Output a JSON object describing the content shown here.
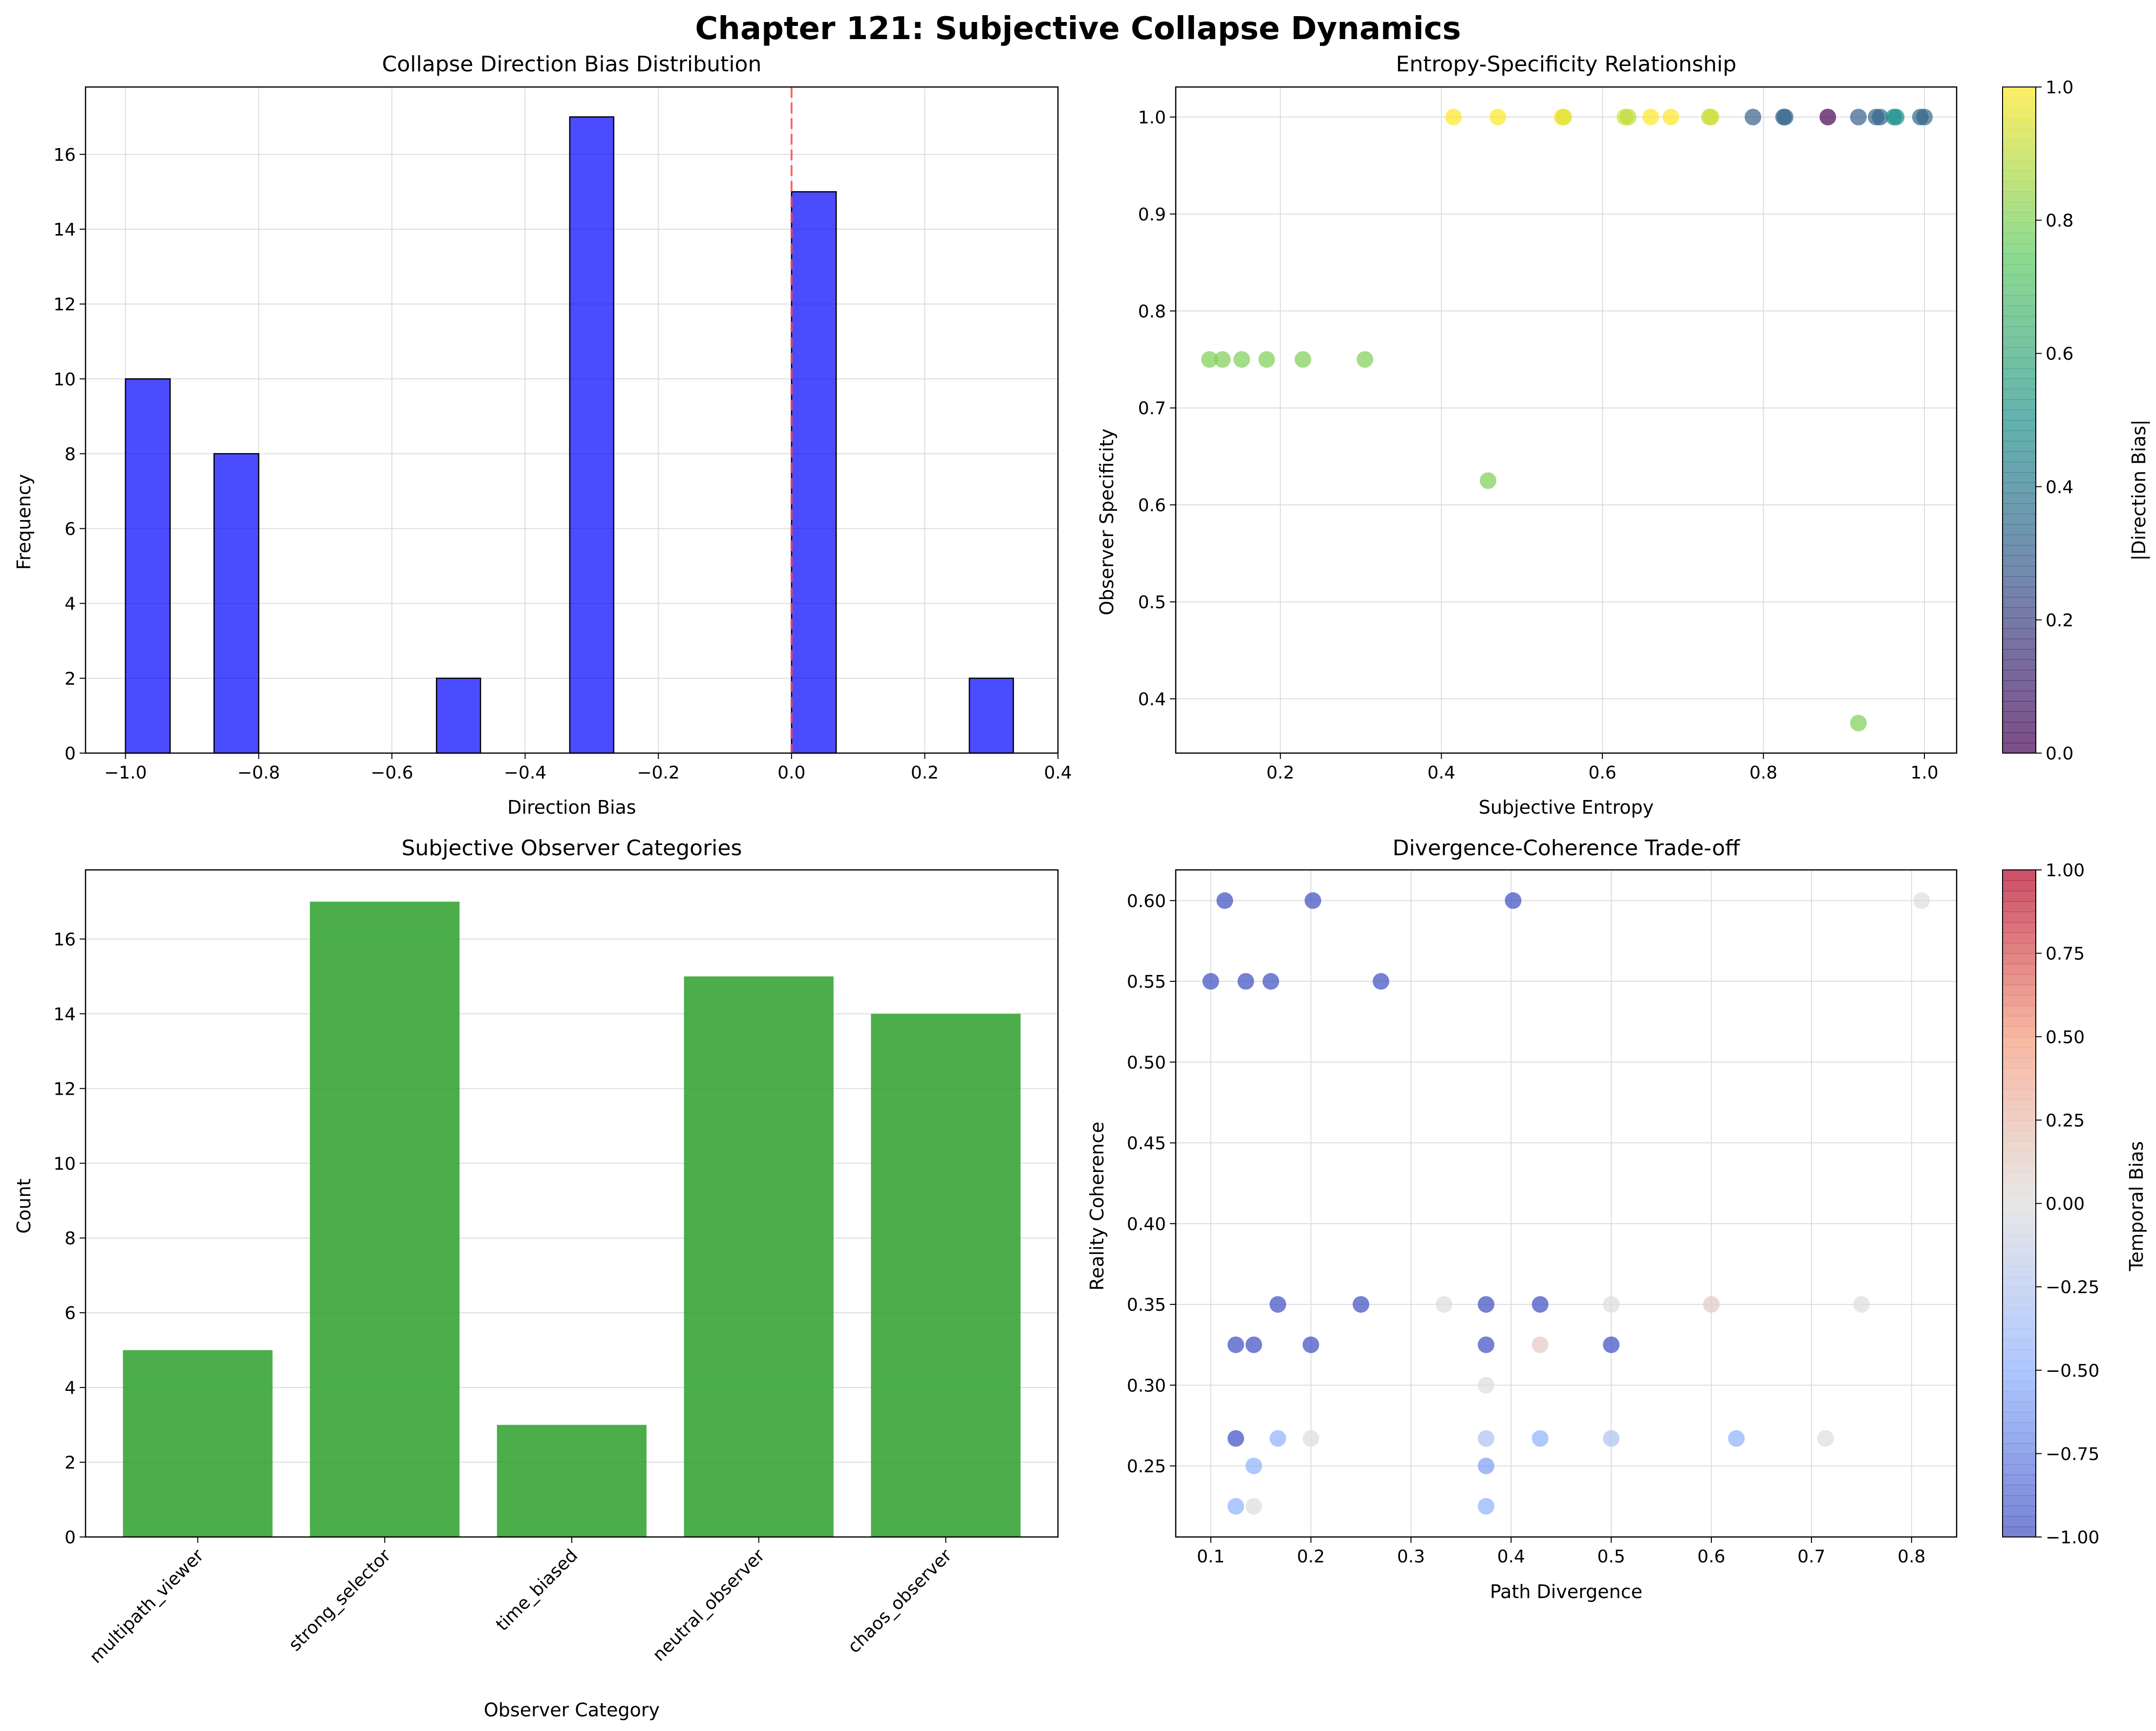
{
  "title": "Chapter 121: Subjective Collapse Dynamics",
  "colors": {
    "hist": "#0000ff",
    "bar": "#2ca02c",
    "zero_line": "#ff4d4d",
    "grid": "#dddddd"
  },
  "chart_data": [
    {
      "id": "hist",
      "type": "bar",
      "title": "Collapse Direction Bias Distribution",
      "xlabel": "Direction Bias",
      "ylabel": "Frequency",
      "xlim": [
        -1.06,
        0.4
      ],
      "ylim": [
        0,
        17.8
      ],
      "xticks": [
        -1.0,
        -0.8,
        -0.6,
        -0.4,
        -0.2,
        0.0,
        0.2,
        0.4
      ],
      "xtick_labels": [
        "−1.0",
        "−0.8",
        "−0.6",
        "−0.4",
        "−0.2",
        "0.0",
        "0.2",
        "0.4"
      ],
      "yticks": [
        0,
        2,
        4,
        6,
        8,
        10,
        12,
        14,
        16
      ],
      "bins": [
        {
          "x0": -1.0,
          "x1": -0.933,
          "value": 10
        },
        {
          "x0": -0.867,
          "x1": -0.8,
          "value": 8
        },
        {
          "x0": -0.533,
          "x1": -0.467,
          "value": 2
        },
        {
          "x0": -0.333,
          "x1": -0.267,
          "value": 17
        },
        {
          "x0": 0.0,
          "x1": 0.067,
          "value": 15
        },
        {
          "x0": 0.267,
          "x1": 0.333,
          "value": 2
        }
      ],
      "vline": 0.0,
      "grid": true
    },
    {
      "id": "scatter1",
      "type": "scatter",
      "title": "Entropy-Specificity Relationship",
      "xlabel": "Subjective Entropy",
      "ylabel": "Observer Specificity",
      "xlim": [
        0.07,
        1.04
      ],
      "ylim": [
        0.344,
        1.031
      ],
      "xticks": [
        0.2,
        0.4,
        0.6,
        0.8,
        1.0
      ],
      "xtick_labels": [
        "0.2",
        "0.4",
        "0.6",
        "0.8",
        "1.0"
      ],
      "yticks": [
        0.4,
        0.5,
        0.6,
        0.7,
        0.8,
        0.9,
        1.0
      ],
      "ytick_labels": [
        "0.4",
        "0.5",
        "0.6",
        "0.7",
        "0.8",
        "0.9",
        "1.0"
      ],
      "colorbar": {
        "label": "|Direction Bias|",
        "colormap": "viridis",
        "range": [
          0,
          1
        ],
        "ticks": [
          0.0,
          0.2,
          0.4,
          0.6,
          0.8,
          1.0
        ],
        "tick_labels": [
          "0.0",
          "0.2",
          "0.4",
          "0.6",
          "0.8",
          "1.0"
        ]
      },
      "points": [
        {
          "x": 0.415,
          "y": 1.0,
          "c": 1.0
        },
        {
          "x": 0.47,
          "y": 1.0,
          "c": 1.0
        },
        {
          "x": 0.55,
          "y": 1.0,
          "c": 1.0
        },
        {
          "x": 0.552,
          "y": 1.0,
          "c": 0.95
        },
        {
          "x": 0.628,
          "y": 1.0,
          "c": 0.93
        },
        {
          "x": 0.632,
          "y": 1.0,
          "c": 0.9
        },
        {
          "x": 0.66,
          "y": 1.0,
          "c": 1.0
        },
        {
          "x": 0.685,
          "y": 1.0,
          "c": 1.0
        },
        {
          "x": 0.733,
          "y": 1.0,
          "c": 0.9
        },
        {
          "x": 0.735,
          "y": 1.0,
          "c": 0.93
        },
        {
          "x": 0.787,
          "y": 1.0,
          "c": 0.3
        },
        {
          "x": 0.825,
          "y": 1.0,
          "c": 0.33
        },
        {
          "x": 0.827,
          "y": 1.0,
          "c": 0.33
        },
        {
          "x": 0.88,
          "y": 1.0,
          "c": 0.0
        },
        {
          "x": 0.918,
          "y": 1.0,
          "c": 0.3
        },
        {
          "x": 0.94,
          "y": 1.0,
          "c": 0.33
        },
        {
          "x": 0.945,
          "y": 1.0,
          "c": 0.33
        },
        {
          "x": 0.962,
          "y": 1.0,
          "c": 0.5
        },
        {
          "x": 0.965,
          "y": 1.0,
          "c": 0.5
        },
        {
          "x": 0.995,
          "y": 1.0,
          "c": 0.33
        },
        {
          "x": 1.0,
          "y": 1.0,
          "c": 0.33
        },
        {
          "x": 0.112,
          "y": 0.75,
          "c": 0.8
        },
        {
          "x": 0.128,
          "y": 0.75,
          "c": 0.8
        },
        {
          "x": 0.152,
          "y": 0.75,
          "c": 0.8
        },
        {
          "x": 0.183,
          "y": 0.75,
          "c": 0.8
        },
        {
          "x": 0.228,
          "y": 0.75,
          "c": 0.8
        },
        {
          "x": 0.305,
          "y": 0.75,
          "c": 0.8
        },
        {
          "x": 0.458,
          "y": 0.625,
          "c": 0.8
        },
        {
          "x": 0.918,
          "y": 0.375,
          "c": 0.8
        }
      ],
      "grid": true
    },
    {
      "id": "bars",
      "type": "bar",
      "title": "Subjective Observer Categories",
      "xlabel": "Observer Category",
      "ylabel": "Count",
      "categories": [
        "multipath_viewer",
        "strong_selector",
        "time_biased",
        "neutral_observer",
        "chaos_observer"
      ],
      "values": [
        5,
        17,
        3,
        15,
        14
      ],
      "ylim": [
        0,
        17.85
      ],
      "yticks": [
        0,
        2,
        4,
        6,
        8,
        10,
        12,
        14,
        16
      ],
      "grid": true
    },
    {
      "id": "scatter2",
      "type": "scatter",
      "title": "Divergence-Coherence Trade-off",
      "xlabel": "Path Divergence",
      "ylabel": "Reality Coherence",
      "xlim": [
        0.065,
        0.845
      ],
      "ylim": [
        0.206,
        0.619
      ],
      "xticks": [
        0.1,
        0.2,
        0.3,
        0.4,
        0.5,
        0.6,
        0.7,
        0.8
      ],
      "xtick_labels": [
        "0.1",
        "0.2",
        "0.3",
        "0.4",
        "0.5",
        "0.6",
        "0.7",
        "0.8"
      ],
      "yticks": [
        0.25,
        0.3,
        0.35,
        0.4,
        0.45,
        0.5,
        0.55,
        0.6
      ],
      "ytick_labels": [
        "0.25",
        "0.30",
        "0.35",
        "0.40",
        "0.45",
        "0.50",
        "0.55",
        "0.60"
      ],
      "colorbar": {
        "label": "Temporal Bias",
        "colormap": "coolwarm",
        "range": [
          -1,
          1
        ],
        "ticks": [
          -1.0,
          -0.75,
          -0.5,
          -0.25,
          0.0,
          0.25,
          0.5,
          0.75,
          1.0
        ],
        "tick_labels": [
          "−1.00",
          "−0.75",
          "−0.50",
          "−0.25",
          "0.00",
          "0.25",
          "0.50",
          "0.75",
          "1.00"
        ]
      },
      "points": [
        {
          "x": 0.114,
          "y": 0.6,
          "c": -1.0
        },
        {
          "x": 0.202,
          "y": 0.6,
          "c": -1.0
        },
        {
          "x": 0.402,
          "y": 0.6,
          "c": -1.0
        },
        {
          "x": 0.81,
          "y": 0.6,
          "c": 0.0
        },
        {
          "x": 0.1,
          "y": 0.55,
          "c": -1.0
        },
        {
          "x": 0.135,
          "y": 0.55,
          "c": -1.0
        },
        {
          "x": 0.16,
          "y": 0.55,
          "c": -1.0
        },
        {
          "x": 0.27,
          "y": 0.55,
          "c": -1.0
        },
        {
          "x": 0.167,
          "y": 0.35,
          "c": -1.0
        },
        {
          "x": 0.25,
          "y": 0.35,
          "c": -1.0
        },
        {
          "x": 0.333,
          "y": 0.35,
          "c": 0.0
        },
        {
          "x": 0.375,
          "y": 0.35,
          "c": -1.0
        },
        {
          "x": 0.429,
          "y": 0.35,
          "c": -1.0
        },
        {
          "x": 0.5,
          "y": 0.35,
          "c": 0.0
        },
        {
          "x": 0.6,
          "y": 0.35,
          "c": 0.15
        },
        {
          "x": 0.75,
          "y": 0.35,
          "c": 0.0
        },
        {
          "x": 0.125,
          "y": 0.325,
          "c": -1.0
        },
        {
          "x": 0.143,
          "y": 0.325,
          "c": -1.0
        },
        {
          "x": 0.2,
          "y": 0.325,
          "c": -1.0
        },
        {
          "x": 0.375,
          "y": 0.325,
          "c": -1.0
        },
        {
          "x": 0.429,
          "y": 0.325,
          "c": 0.15
        },
        {
          "x": 0.5,
          "y": 0.325,
          "c": -1.0
        },
        {
          "x": 0.375,
          "y": 0.3,
          "c": 0.0
        },
        {
          "x": 0.125,
          "y": 0.267,
          "c": -1.0
        },
        {
          "x": 0.167,
          "y": 0.267,
          "c": -0.5
        },
        {
          "x": 0.2,
          "y": 0.267,
          "c": 0.0
        },
        {
          "x": 0.375,
          "y": 0.267,
          "c": -0.3
        },
        {
          "x": 0.429,
          "y": 0.267,
          "c": -0.5
        },
        {
          "x": 0.5,
          "y": 0.267,
          "c": -0.3
        },
        {
          "x": 0.625,
          "y": 0.267,
          "c": -0.5
        },
        {
          "x": 0.714,
          "y": 0.267,
          "c": 0.0
        },
        {
          "x": 0.143,
          "y": 0.25,
          "c": -0.5
        },
        {
          "x": 0.375,
          "y": 0.25,
          "c": -0.6
        },
        {
          "x": 0.125,
          "y": 0.225,
          "c": -0.5
        },
        {
          "x": 0.143,
          "y": 0.225,
          "c": 0.0
        },
        {
          "x": 0.375,
          "y": 0.225,
          "c": -0.5
        }
      ],
      "grid": true
    }
  ]
}
